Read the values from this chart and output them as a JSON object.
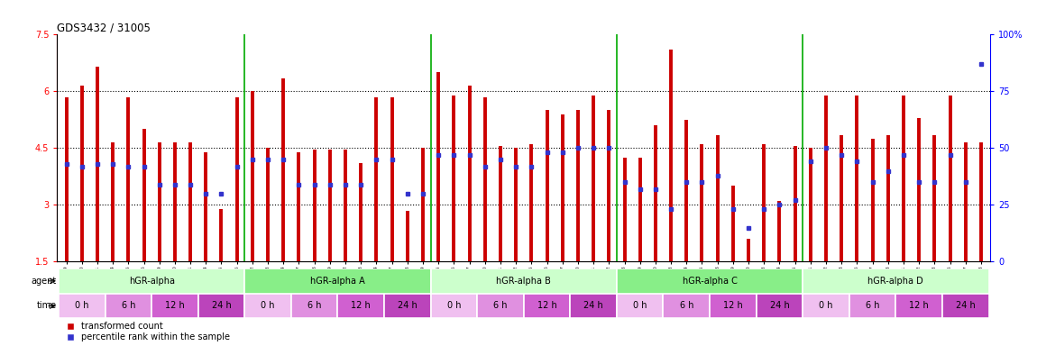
{
  "title": "GDS3432 / 31005",
  "ylim_left": [
    1.5,
    7.5
  ],
  "ylim_right": [
    0,
    100
  ],
  "yticks_left": [
    1.5,
    3.0,
    4.5,
    6.0,
    7.5
  ],
  "yticks_right": [
    0,
    25,
    50,
    75,
    100
  ],
  "ytick_labels_left": [
    "1.5",
    "3",
    "4.5",
    "6",
    "7.5"
  ],
  "ytick_labels_right": [
    "0",
    "25",
    "50",
    "75",
    "100%"
  ],
  "bar_color": "#cc0000",
  "marker_color": "#3333cc",
  "bar_bottom": 1.5,
  "samples": [
    "GSM154259",
    "GSM154260",
    "GSM154261",
    "GSM154274",
    "GSM154275",
    "GSM154276",
    "GSM154289",
    "GSM154290",
    "GSM154291",
    "GSM154304",
    "GSM154305",
    "GSM154306",
    "GSM154262",
    "GSM154263",
    "GSM154264",
    "GSM154277",
    "GSM154278",
    "GSM154279",
    "GSM154292",
    "GSM154293",
    "GSM154294",
    "GSM154307",
    "GSM154308",
    "GSM154309",
    "GSM154265",
    "GSM154266",
    "GSM154267",
    "GSM154280",
    "GSM154281",
    "GSM154282",
    "GSM154295",
    "GSM154296",
    "GSM154297",
    "GSM154310",
    "GSM154311",
    "GSM154312",
    "GSM154268",
    "GSM154269",
    "GSM154270",
    "GSM154283",
    "GSM154284",
    "GSM154285",
    "GSM154298",
    "GSM154299",
    "GSM154300",
    "GSM154313",
    "GSM154314",
    "GSM154315",
    "GSM154271",
    "GSM154272",
    "GSM154273",
    "GSM154286",
    "GSM154287",
    "GSM154288",
    "GSM154301",
    "GSM154302",
    "GSM154303",
    "GSM154316",
    "GSM154317",
    "GSM154318"
  ],
  "bar_values": [
    5.85,
    6.15,
    6.65,
    4.65,
    5.85,
    5.0,
    4.65,
    4.65,
    4.65,
    4.4,
    2.9,
    5.85,
    6.0,
    4.5,
    6.35,
    4.4,
    4.45,
    4.45,
    4.45,
    4.1,
    5.85,
    5.85,
    2.85,
    4.5,
    6.5,
    5.9,
    6.15,
    5.85,
    4.55,
    4.5,
    4.6,
    5.5,
    5.4,
    5.5,
    5.9,
    5.5,
    4.25,
    4.25,
    5.1,
    7.1,
    5.25,
    4.6,
    4.85,
    3.5,
    2.1,
    4.6,
    3.1,
    4.55,
    4.5,
    5.9,
    4.85,
    5.9,
    4.75,
    4.85,
    5.9,
    5.3,
    4.85,
    5.9,
    4.65,
    4.65
  ],
  "percentile_values": [
    43,
    42,
    43,
    43,
    42,
    42,
    34,
    34,
    34,
    30,
    30,
    42,
    45,
    45,
    45,
    34,
    34,
    34,
    34,
    34,
    45,
    45,
    30,
    30,
    47,
    47,
    47,
    42,
    45,
    42,
    42,
    48,
    48,
    50,
    50,
    50,
    35,
    32,
    32,
    23,
    35,
    35,
    38,
    23,
    15,
    23,
    25,
    27,
    44,
    50,
    47,
    44,
    35,
    40,
    47,
    35,
    35,
    47,
    35,
    87
  ],
  "agents": [
    {
      "label": "hGR-alpha",
      "start": 0,
      "end": 12,
      "color": "#ccffcc"
    },
    {
      "label": "hGR-alpha A",
      "start": 12,
      "end": 24,
      "color": "#88ee88"
    },
    {
      "label": "hGR-alpha B",
      "start": 24,
      "end": 36,
      "color": "#ccffcc"
    },
    {
      "label": "hGR-alpha C",
      "start": 36,
      "end": 48,
      "color": "#88ee88"
    },
    {
      "label": "hGR-alpha D",
      "start": 48,
      "end": 60,
      "color": "#ccffcc"
    }
  ],
  "time_labels": [
    "0 h",
    "6 h",
    "12 h",
    "24 h"
  ],
  "time_colors": [
    "#f0c0f0",
    "#e090e0",
    "#d060d0",
    "#bb44bb"
  ],
  "n_groups": 5,
  "samples_per_group": 12,
  "samples_per_time": 3
}
